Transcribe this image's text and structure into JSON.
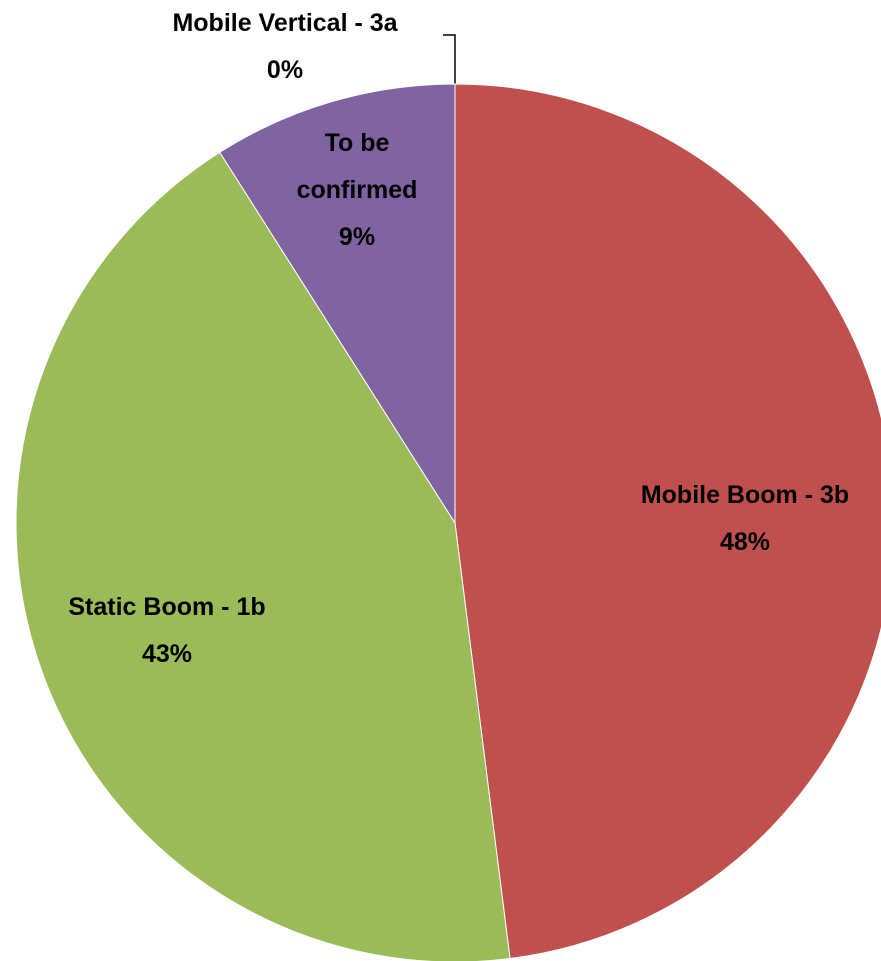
{
  "chart_data": {
    "type": "pie",
    "categories": [
      "Mobile Vertical - 3a",
      "Mobile Boom - 3b",
      "Static Boom - 1b",
      "To be confirmed"
    ],
    "values": [
      0,
      48,
      43,
      9
    ],
    "value_labels": [
      "0%",
      "48%",
      "43%",
      "9%"
    ],
    "colors": [
      "#4f81bd",
      "#c0504d",
      "#9bbb59",
      "#8064a2"
    ]
  }
}
